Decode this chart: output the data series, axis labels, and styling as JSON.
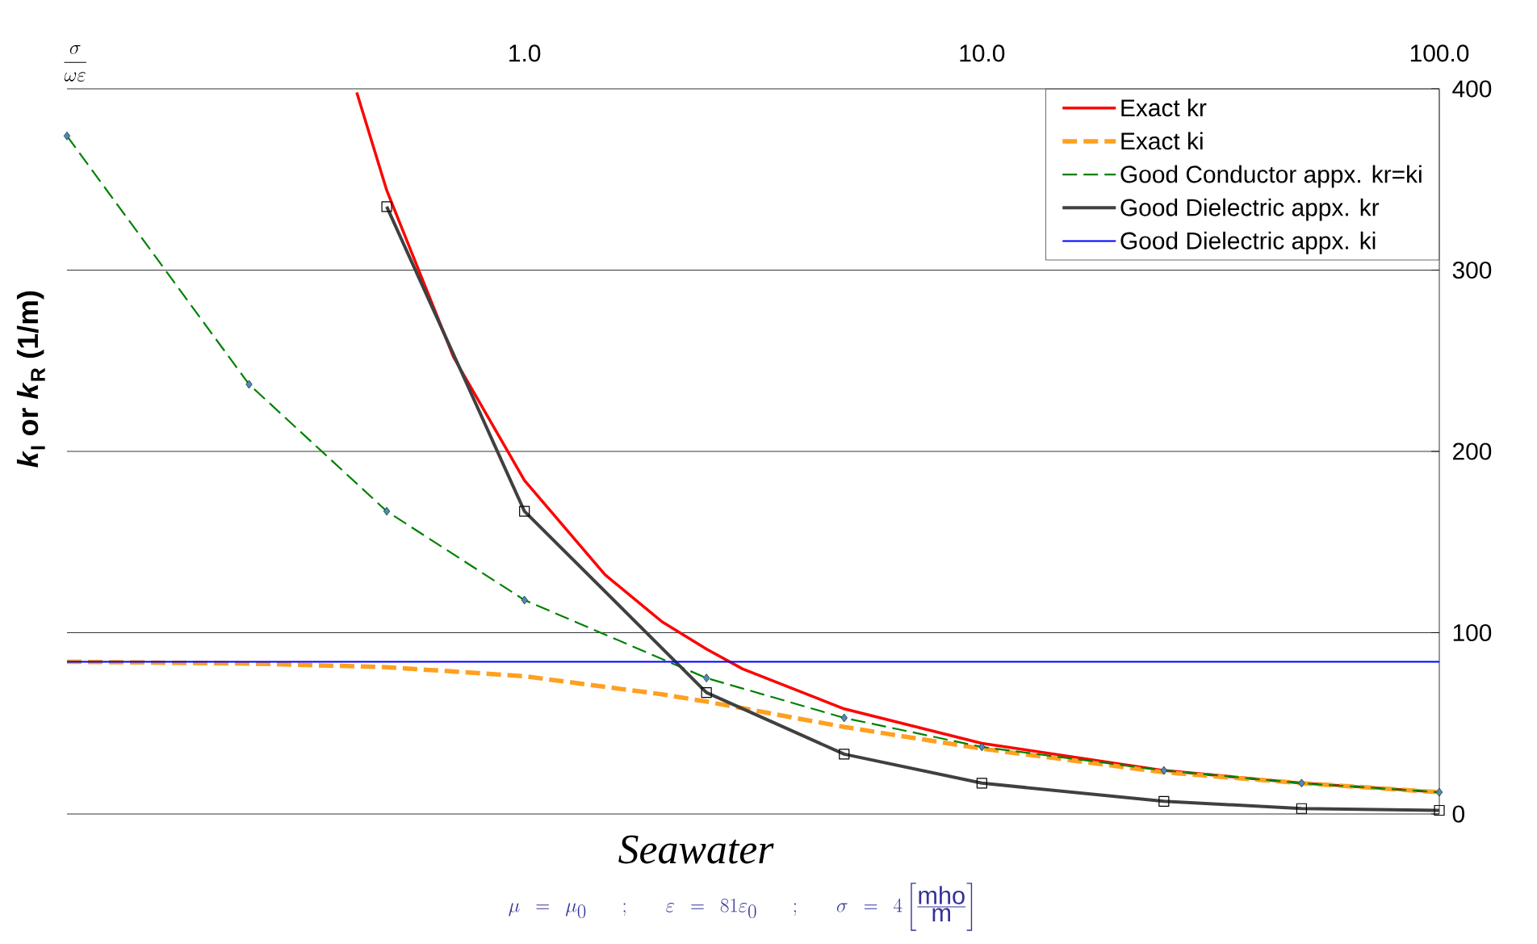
{
  "chart_data": {
    "type": "line",
    "xlabel": "\\frac{\\sigma}{\\omega\\varepsilon}",
    "ylabel": "*k*$_{I}$ or *k*$_{R}$ (1/m)",
    "annotations": [
      "Seawater",
      "\\mu\\ =\\ \\mu_{0}\\quad ;\\quad \\varepsilon\\ =\\ 81\\varepsilon_{0}\\quad ;\\quad \\sigma\\ =\\ 4\\left[\\frac{\\mathrm{mho}}{\\mathrm{m}}\\right]"
    ],
    "log": "x",
    "xlim": [
      0.1,
      100
    ],
    "xticks": [
      {
        "value": 1,
        "label": "1.0"
      },
      {
        "value": 10,
        "label": "10.0"
      },
      {
        "value": 100,
        "label": "100.0"
      }
    ],
    "ylim": [
      0,
      400
    ],
    "yticks": [
      0,
      100,
      200,
      300,
      400
    ],
    "grid": "y",
    "legend": "top right",
    "series": [
      {
        "name": "Exact kr",
        "color": "#ff0000",
        "line_style": "solid",
        "marker": "none",
        "x": [
          0.43,
          0.5,
          0.7,
          1,
          1.5,
          2,
          2.5,
          3,
          5,
          10,
          25,
          50,
          100
        ],
        "values": [
          398,
          344,
          252,
          184,
          132,
          106,
          91,
          80,
          58,
          39,
          24,
          17,
          12
        ]
      },
      {
        "name": "Exact ki",
        "color": "#ffa020",
        "line_style": "dashed",
        "marker": "none",
        "x": [
          0.1,
          0.25,
          0.5,
          1,
          2,
          2.5,
          5,
          10,
          25,
          50,
          100
        ],
        "values": [
          84,
          83,
          81,
          76,
          66,
          62,
          48,
          36,
          23,
          17,
          12
        ]
      },
      {
        "name": "Good Conductor appx. kr=ki",
        "color": "#008000",
        "line_style": "dashed",
        "marker": "diamond",
        "x": [
          0.1,
          0.25,
          0.5,
          1,
          2.5,
          5,
          10,
          25,
          50,
          100
        ],
        "values": [
          374,
          237,
          167,
          118,
          75,
          53,
          37,
          24,
          17,
          12
        ]
      },
      {
        "name": "Good Dielectric appx. kr",
        "color": "#404040",
        "line_style": "solid",
        "marker": "square",
        "x": [
          0.5,
          1,
          2.5,
          5,
          10,
          25,
          50,
          100
        ],
        "values": [
          335,
          167,
          67,
          33,
          17,
          7,
          3,
          2
        ]
      },
      {
        "name": "Good Dielectric appx. ki",
        "color": "#0000ff",
        "line_style": "solid",
        "marker": "none",
        "x": [
          0.1,
          100
        ],
        "values": [
          84,
          84
        ]
      }
    ]
  }
}
